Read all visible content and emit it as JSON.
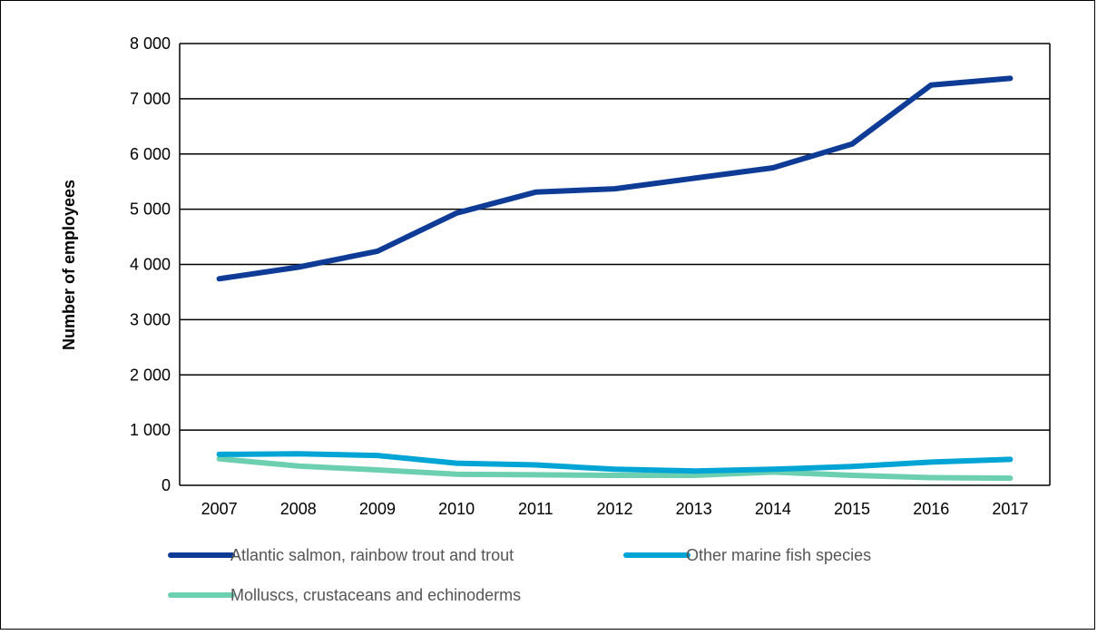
{
  "chart_data": {
    "type": "line",
    "title": "",
    "xlabel": "",
    "ylabel": "Number of employees",
    "ylim": [
      0,
      8000
    ],
    "yticks": [
      {
        "value": 0,
        "label": "0"
      },
      {
        "value": 1000,
        "label": "1 000"
      },
      {
        "value": 2000,
        "label": "2 000"
      },
      {
        "value": 3000,
        "label": "3 000"
      },
      {
        "value": 4000,
        "label": "4 000"
      },
      {
        "value": 5000,
        "label": "5 000"
      },
      {
        "value": 6000,
        "label": "6 000"
      },
      {
        "value": 7000,
        "label": "7 000"
      },
      {
        "value": 8000,
        "label": "8 000"
      }
    ],
    "categories": [
      "2007",
      "2008",
      "2009",
      "2010",
      "2011",
      "2012",
      "2013",
      "2014",
      "2015",
      "2016",
      "2017"
    ],
    "grid": "horizontal",
    "legend_position": "bottom",
    "series": [
      {
        "name": "Atlantic salmon, rainbow trout and trout",
        "color": "#0e3b96",
        "values": [
          3740,
          3950,
          4240,
          4930,
          5310,
          5370,
          5560,
          5750,
          6180,
          7250,
          7370
        ]
      },
      {
        "name": "Other marine fish species",
        "color": "#00a5d6",
        "values": [
          560,
          570,
          540,
          400,
          370,
          290,
          260,
          290,
          340,
          420,
          470
        ]
      },
      {
        "name": "Molluscs, crustaceans and echinoderms",
        "color": "#6ccfb0",
        "values": [
          480,
          350,
          280,
          200,
          190,
          180,
          180,
          240,
          180,
          140,
          130
        ]
      }
    ]
  }
}
